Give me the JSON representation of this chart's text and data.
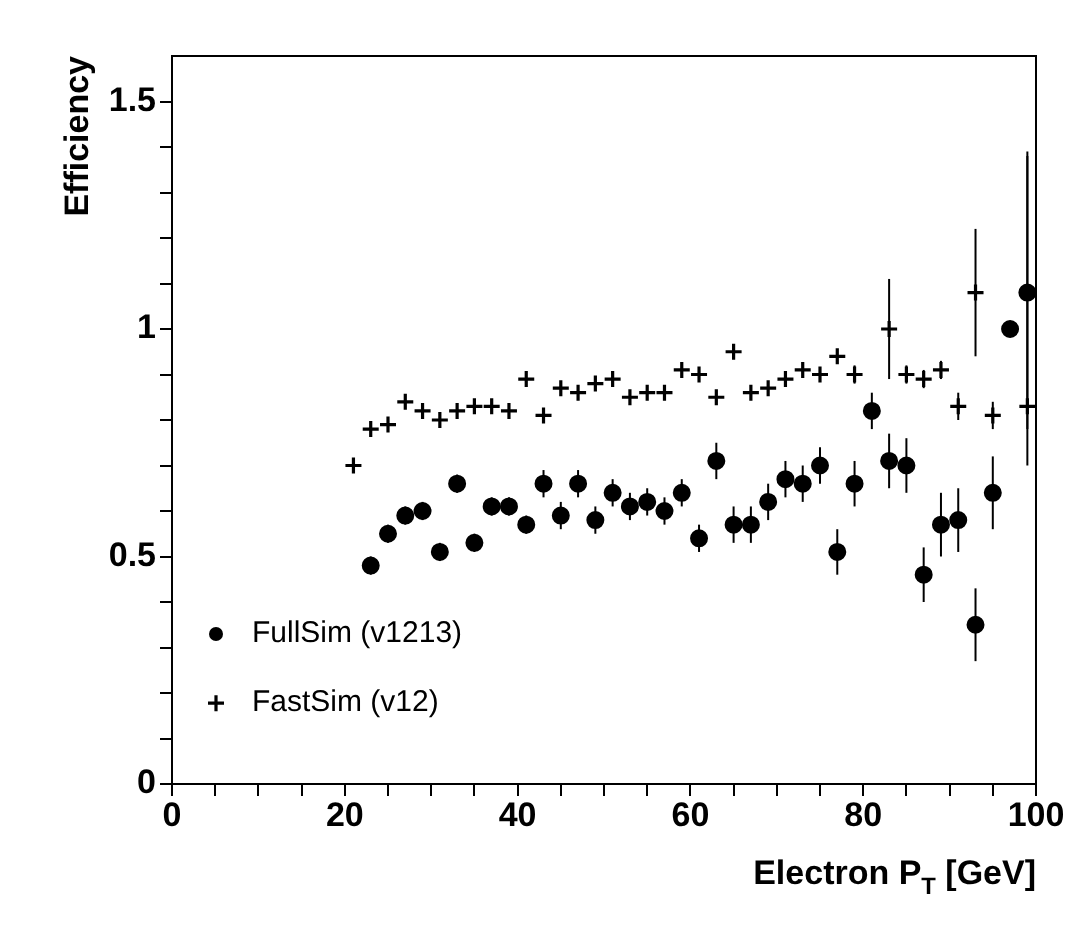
{
  "chart_data": {
    "type": "scatter",
    "xlabel": "Electron P$_{T}$ [GeV]",
    "ylabel": "Efficiency",
    "xlim": [
      0,
      100
    ],
    "ylim": [
      0,
      1.6
    ],
    "xticks": [
      0,
      {
        "value": 5,
        "label": null
      },
      {
        "value": 10,
        "label": null
      },
      {
        "value": 15,
        "label": null
      },
      20,
      {
        "value": 25,
        "label": null
      },
      {
        "value": 30,
        "label": null
      },
      {
        "value": 35,
        "label": null
      },
      40,
      {
        "value": 45,
        "label": null
      },
      {
        "value": 50,
        "label": null
      },
      {
        "value": 55,
        "label": null
      },
      60,
      {
        "value": 65,
        "label": null
      },
      {
        "value": 70,
        "label": null
      },
      {
        "value": 75,
        "label": null
      },
      80,
      {
        "value": 85,
        "label": null
      },
      {
        "value": 90,
        "label": null
      },
      {
        "value": 95,
        "label": null
      },
      100
    ],
    "yticks": [
      0,
      {
        "value": 0.1,
        "label": null
      },
      {
        "value": 0.2,
        "label": null
      },
      {
        "value": 0.3,
        "label": null
      },
      {
        "value": 0.4,
        "label": null
      },
      0.5,
      {
        "value": 0.6,
        "label": null
      },
      {
        "value": 0.7,
        "label": null
      },
      {
        "value": 0.8,
        "label": null
      },
      {
        "value": 0.9,
        "label": null
      },
      1,
      {
        "value": 1.1,
        "label": null
      },
      {
        "value": 1.2,
        "label": null
      },
      {
        "value": 1.3,
        "label": null
      },
      {
        "value": 1.4,
        "label": null
      },
      1.5
    ],
    "grid": false,
    "legend": "bottom left",
    "series": [
      {
        "name": "FullSim (v1213)",
        "color": "#000000",
        "marker": "circle",
        "x": [
          23,
          25,
          27,
          29,
          31,
          33,
          35,
          37,
          39,
          41,
          43,
          45,
          47,
          49,
          51,
          53,
          55,
          57,
          59,
          61,
          63,
          65,
          67,
          69,
          71,
          73,
          75,
          77,
          79,
          81,
          83,
          85,
          87,
          89,
          91,
          93,
          95,
          97,
          99
        ],
        "values": [
          0.48,
          0.55,
          0.59,
          0.6,
          0.51,
          0.66,
          0.53,
          0.61,
          0.61,
          0.57,
          0.66,
          0.59,
          0.66,
          0.58,
          0.64,
          0.61,
          0.62,
          0.6,
          0.64,
          0.54,
          0.71,
          0.57,
          0.57,
          0.62,
          0.67,
          0.66,
          0.7,
          0.51,
          0.66,
          0.82,
          0.71,
          0.7,
          0.46,
          0.57,
          0.58,
          0.35,
          0.64,
          1.0,
          1.08
        ],
        "errors": [
          0.02,
          0.02,
          0.02,
          0.02,
          0.02,
          0.02,
          0.02,
          0.02,
          0.02,
          0.02,
          0.03,
          0.03,
          0.03,
          0.03,
          0.03,
          0.03,
          0.03,
          0.03,
          0.03,
          0.03,
          0.04,
          0.04,
          0.04,
          0.04,
          0.04,
          0.04,
          0.04,
          0.05,
          0.05,
          0.04,
          0.06,
          0.06,
          0.06,
          0.07,
          0.07,
          0.08,
          0.08,
          null,
          0.3
        ]
      },
      {
        "name": "FastSim (v12)",
        "color": "#000000",
        "marker": "cross",
        "x": [
          21,
          23,
          25,
          27,
          29,
          31,
          33,
          35,
          37,
          39,
          41,
          43,
          45,
          47,
          49,
          51,
          53,
          55,
          57,
          59,
          61,
          63,
          65,
          67,
          69,
          71,
          73,
          75,
          77,
          79,
          83,
          85,
          87,
          89,
          91,
          93,
          95,
          99
        ],
        "values": [
          0.7,
          0.78,
          0.79,
          0.84,
          0.82,
          0.8,
          0.82,
          0.83,
          0.83,
          0.82,
          0.89,
          0.81,
          0.87,
          0.86,
          0.88,
          0.89,
          0.85,
          0.86,
          0.86,
          0.91,
          0.9,
          0.85,
          0.95,
          0.86,
          0.87,
          0.89,
          0.91,
          0.9,
          0.94,
          0.9,
          1.0,
          0.9,
          0.89,
          0.91,
          0.83,
          1.08,
          0.81,
          0.83
        ],
        "errors": [
          null,
          null,
          null,
          null,
          null,
          null,
          null,
          null,
          null,
          null,
          null,
          null,
          null,
          null,
          null,
          null,
          null,
          null,
          null,
          null,
          null,
          null,
          null,
          null,
          null,
          null,
          null,
          null,
          null,
          0.02,
          0.11,
          0.02,
          0.02,
          0.02,
          0.03,
          0.14,
          0.03,
          [
            0.7,
            1.39
          ]
        ]
      }
    ]
  }
}
